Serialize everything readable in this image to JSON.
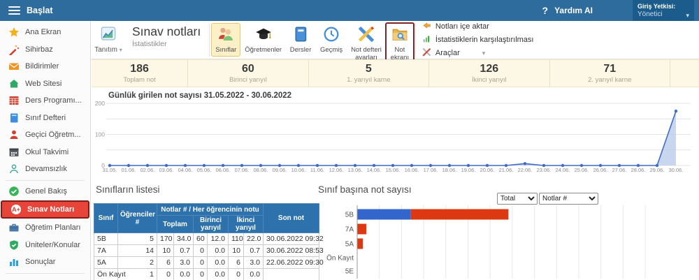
{
  "topbar": {
    "menu": "Başlat",
    "help_icon": "?",
    "help": "Yardım AI",
    "role_label": "Giriş Yetkisi:",
    "role_value": "Yönetici"
  },
  "sidebar": {
    "items": [
      {
        "icon": "star",
        "label": "Ana Ekran"
      },
      {
        "icon": "wand",
        "label": "Sihirbaz"
      },
      {
        "icon": "envelope",
        "label": "Bildirimler"
      },
      {
        "icon": "home",
        "label": "Web Sitesi"
      },
      {
        "icon": "schedule-grid",
        "label": "Ders Programı..."
      },
      {
        "icon": "book",
        "label": "Sınıf Defteri"
      },
      {
        "icon": "person",
        "label": "Geçici Öğretm..."
      },
      {
        "icon": "calendar",
        "label": "Okul Takvimi"
      },
      {
        "icon": "person-outline",
        "label": "Devamsızlık",
        "divider_after": true
      },
      {
        "icon": "check-circle",
        "label": "Genel Bakış"
      },
      {
        "icon": "grade-badge",
        "label": "Sınav Notları",
        "selected": true
      },
      {
        "icon": "briefcase",
        "label": "Öğretim Planları"
      },
      {
        "icon": "shield-check",
        "label": "Üniteler/Konular"
      },
      {
        "icon": "bar-chart",
        "label": "Sonuçlar",
        "divider_after": true
      },
      {
        "icon": "education",
        "label": "Eğitim",
        "chevron": true
      }
    ]
  },
  "ribbon": {
    "intro_label": "Tanıtım",
    "title": "Sınav notları",
    "subtitle": "İstatistikler",
    "buttons": [
      {
        "icon": "students-pair",
        "label": "Sınıflar",
        "selected": true
      },
      {
        "icon": "graduation-cap",
        "label": "Öğretmenler"
      },
      {
        "icon": "tablet-book",
        "label": "Dersler"
      },
      {
        "icon": "clock",
        "label": "Geçmiş"
      },
      {
        "icon": "pencil-ruler",
        "label": "Not defteri\nayarları"
      },
      {
        "icon": "folder-search",
        "label": "Not\nekranı",
        "highlighted": true
      }
    ],
    "menu": [
      {
        "icon": "import-arrow",
        "label": "Notları içe aktar"
      },
      {
        "icon": "compare-bars",
        "label": "İstatistiklerin karşılaştırılması"
      },
      {
        "icon": "tools-cross",
        "label": "Araçlar",
        "dropdown": true
      }
    ]
  },
  "stats": [
    {
      "value": "186",
      "label": "Toplam not"
    },
    {
      "value": "60",
      "label": "Birinci yarıyıl"
    },
    {
      "value": "5",
      "label": "1. yarıyıl karne"
    },
    {
      "value": "126",
      "label": "İkinci yarıyıl"
    },
    {
      "value": "71",
      "label": "2. yarıyıl karne"
    }
  ],
  "chart_data": [
    {
      "type": "area",
      "title": "Günlük girilen not sayısı 31.05.2022 - 30.06.2022",
      "x": [
        "31.05.",
        "01.06.",
        "02.06.",
        "03.06.",
        "04.06.",
        "05.06.",
        "06.06.",
        "07.06.",
        "08.06.",
        "09.06.",
        "10.06.",
        "11.06.",
        "12.06.",
        "13.06.",
        "14.06.",
        "15.06.",
        "16.06.",
        "17.06.",
        "18.06.",
        "19.06.",
        "20.06.",
        "21.06.",
        "22.06.",
        "23.06.",
        "24.06.",
        "25.06.",
        "26.06.",
        "27.06.",
        "28.06.",
        "29.06.",
        "30.06."
      ],
      "series": [
        {
          "name": "Not sayısı",
          "values": [
            0,
            0,
            0,
            0,
            0,
            0,
            0,
            0,
            0,
            0,
            0,
            0,
            0,
            0,
            0,
            0,
            0,
            0,
            0,
            0,
            0,
            0,
            6,
            0,
            0,
            0,
            0,
            0,
            0,
            0,
            175
          ]
        }
      ],
      "ylim": [
        0,
        200
      ],
      "yticks": [
        0,
        100,
        200
      ],
      "gridlines": [
        0,
        50,
        100,
        150,
        200
      ],
      "grid": true,
      "legend": "none",
      "line_color": "#3f6bc8",
      "fill_color": "#b7c9e8"
    },
    {
      "type": "bar",
      "orientation": "horizontal",
      "stacked": true,
      "title": "Sınıf başına not sayısı",
      "categories": [
        "5B",
        "7A",
        "5A",
        "Ön Kayıt",
        "5E"
      ],
      "series": [
        {
          "name": "Birinci yarıyıl",
          "color": "#3366cc",
          "values": [
            60,
            0,
            0,
            0,
            0
          ]
        },
        {
          "name": "İkinci yarıyıl",
          "color": "#dc3912",
          "values": [
            110,
            10,
            6,
            0,
            0
          ]
        }
      ],
      "xlim": [
        0,
        325
      ],
      "grid_step": 25,
      "legend": "none"
    }
  ],
  "bar_section": {
    "selects": [
      {
        "selected": "Total",
        "options": [
          "Total"
        ]
      },
      {
        "selected": "Notlar #",
        "options": [
          "Notlar #"
        ]
      }
    ]
  },
  "table": {
    "title": "Sınıfların listesi",
    "header": {
      "class": "Sınıf",
      "students": "Öğrenciler #",
      "group": "Notlar # / Her öğrencinin notu",
      "total": "Toplam",
      "first_term": "Birinci yarıyıl",
      "second_term": "İkinci yarıyıl",
      "last_grade": "Son not"
    },
    "rows": [
      {
        "class": "5B",
        "students": "5",
        "total_n": "170",
        "total_avg": "34.0",
        "first_n": "60",
        "first_avg": "12.0",
        "second_n": "110",
        "second_avg": "22.0",
        "last": "30.06.2022 09:32"
      },
      {
        "class": "7A",
        "students": "14",
        "total_n": "10",
        "total_avg": "0.7",
        "first_n": "0",
        "first_avg": "0.0",
        "second_n": "10",
        "second_avg": "0.7",
        "last": "30.06.2022 08:53"
      },
      {
        "class": "5A",
        "students": "2",
        "total_n": "6",
        "total_avg": "3.0",
        "first_n": "0",
        "first_avg": "0.0",
        "second_n": "6",
        "second_avg": "3.0",
        "last": "22.06.2022 09:30"
      },
      {
        "class": "Ön Kayıt",
        "students": "1",
        "total_n": "0",
        "total_avg": "0.0",
        "first_n": "0",
        "first_avg": "0.0",
        "second_n": "0",
        "second_avg": "0.0",
        "last": ""
      }
    ]
  }
}
